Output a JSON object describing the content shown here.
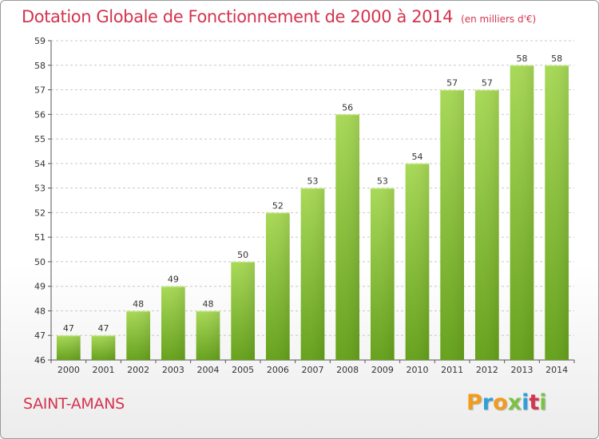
{
  "title": "Dotation Globale de Fonctionnement de 2000 à 2014",
  "unit_note": "(en milliers d'€)",
  "commune": "SAINT-AMANS",
  "brand": {
    "letters": [
      "P",
      "r",
      "o",
      "x",
      "i",
      "t",
      "i"
    ],
    "colors": [
      "#f29b1d",
      "#2f9fdc",
      "#f29b1d",
      "#7cc242",
      "#2f9fdc",
      "#d3344f",
      "#7cc242"
    ]
  },
  "colors": {
    "title": "#d3344f",
    "bar_light": "#a4d64e",
    "bar_dark": "#6aa61f",
    "grid": "#cccccc",
    "axis_text": "#333333"
  },
  "chart_data": {
    "type": "bar",
    "categories": [
      "2000",
      "2001",
      "2002",
      "2003",
      "2004",
      "2005",
      "2006",
      "2007",
      "2008",
      "2009",
      "2010",
      "2011",
      "2012",
      "2013",
      "2014"
    ],
    "values": [
      47,
      47,
      48,
      49,
      48,
      50,
      52,
      53,
      56,
      53,
      54,
      57,
      57,
      58,
      58
    ],
    "ylim": [
      46,
      59
    ],
    "yticks": [
      46,
      47,
      48,
      49,
      50,
      51,
      52,
      53,
      54,
      55,
      56,
      57,
      58,
      59
    ],
    "grid": "horizontal-dashed",
    "data_labels": true
  }
}
